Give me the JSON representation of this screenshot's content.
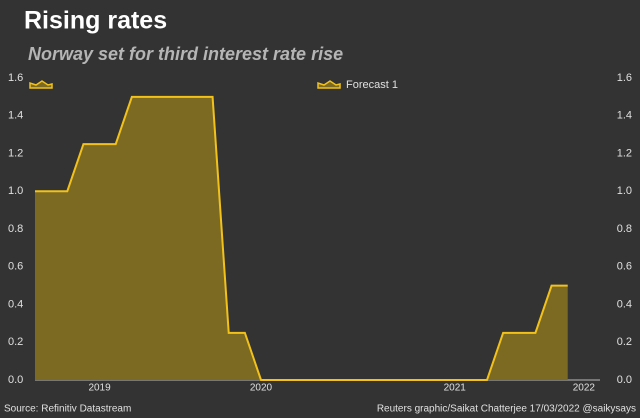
{
  "chart_data": {
    "type": "area",
    "title": "Rising rates",
    "subtitle": "Norway set for third interest rate rise",
    "source": "Source: Refinitiv Datastream",
    "credit": "Reuters graphic/Saikat Chatterjee 17/03/2022 @saikysays",
    "categories": [
      null,
      null,
      null,
      null,
      "2019",
      null,
      null,
      null,
      null,
      null,
      null,
      null,
      null,
      null,
      "2020",
      null,
      null,
      null,
      null,
      null,
      null,
      null,
      null,
      null,
      null,
      null,
      "2021",
      null,
      null,
      null,
      null,
      null,
      null,
      null,
      "2022",
      null
    ],
    "series": [
      {
        "color": "#f2c21b",
        "fill": "#7c6a22",
        "values": [
          1.0,
          1.0,
          1.0,
          1.25,
          1.25,
          1.25,
          1.5,
          1.5,
          1.5,
          1.5,
          1.5,
          1.5,
          0.25,
          0.25,
          0,
          0,
          0,
          0,
          0,
          0,
          0,
          0,
          0,
          0,
          0,
          0,
          0,
          0,
          0,
          0.25,
          0.25,
          0.25,
          0.5,
          0.5,
          null,
          null
        ]
      },
      {
        "name": "Forecast 1",
        "color": "#f2c21b",
        "fill": "#7c6a22",
        "values": [
          null,
          null,
          null,
          null,
          null,
          null,
          null,
          null,
          null,
          null,
          null,
          null,
          null,
          null,
          null,
          null,
          null,
          null,
          null,
          null,
          null,
          null,
          null,
          null,
          null,
          null,
          null,
          null,
          null,
          null,
          null,
          null,
          null,
          null,
          null,
          null
        ]
      }
    ],
    "ylim": [
      0,
      1.6
    ],
    "yticks": [
      {
        "value": 0,
        "label": "0.0"
      },
      0.2,
      0.4,
      0.6,
      0.8,
      {
        "value": 1,
        "label": "1.0"
      },
      1.2,
      1.4,
      1.6
    ],
    "y2lim": [
      0,
      1.6
    ],
    "y2ticks": [
      {
        "value": 0,
        "label": "0.0"
      },
      0.2,
      0.4,
      0.6,
      0.8,
      {
        "value": 1,
        "label": "1.0"
      },
      1.2,
      1.4,
      1.6
    ]
  }
}
